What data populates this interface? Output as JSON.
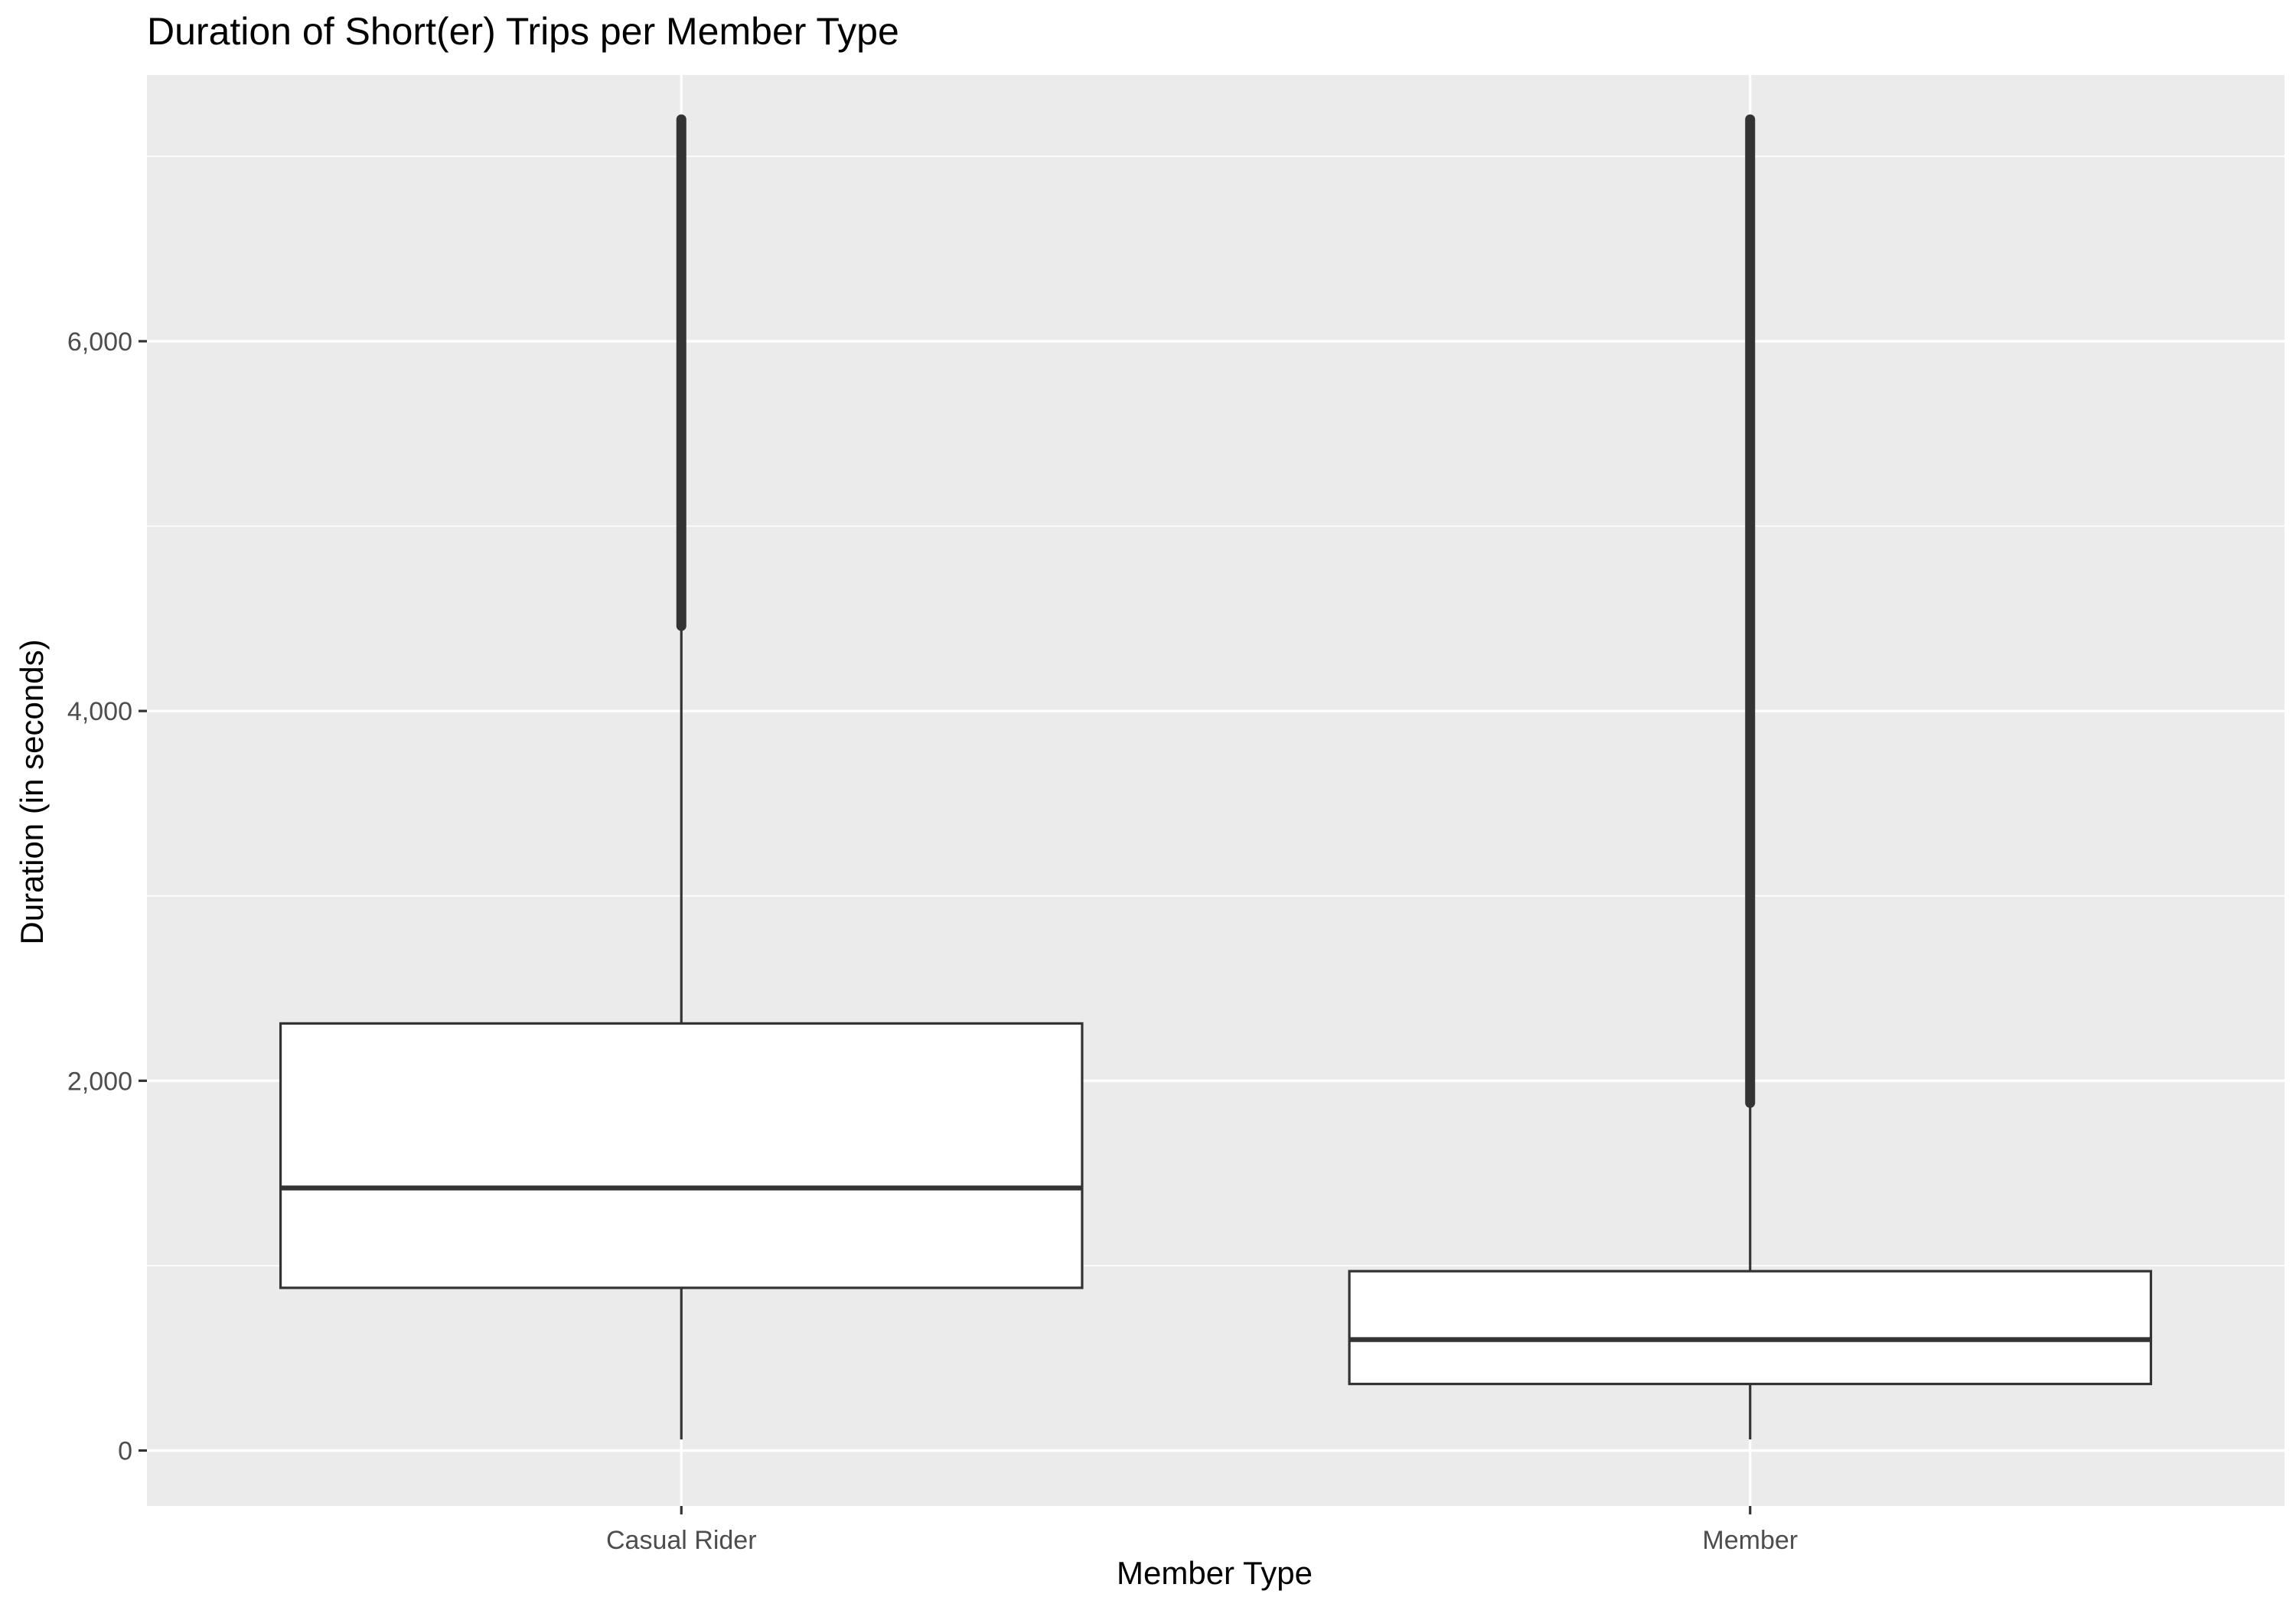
{
  "chart_data": {
    "type": "boxplot",
    "title": "Duration of Short(er) Trips per Member Type",
    "xlabel": "Member Type",
    "ylabel": "Duration (in seconds)",
    "categories": [
      "Casual Rider",
      "Member"
    ],
    "ylim": [
      -300,
      7440
    ],
    "y_ticks": [
      0,
      2000,
      4000,
      6000
    ],
    "y_tick_labels": [
      "0",
      "2,000",
      "4,000",
      "6,000"
    ],
    "grid": true,
    "legend": "none",
    "boxes": [
      {
        "category": "Casual Rider",
        "min": 60,
        "q1": 880,
        "median": 1420,
        "q3": 2310,
        "whisker_high": 4460,
        "outlier_range": [
          4460,
          7200
        ]
      },
      {
        "category": "Member",
        "min": 60,
        "q1": 360,
        "median": 600,
        "q3": 970,
        "whisker_high": 1880,
        "outlier_range": [
          1880,
          7200
        ]
      }
    ],
    "colors": {
      "panel": "#ebebeb",
      "grid": "#ffffff",
      "box_fill": "#ffffff",
      "box_line": "#333333",
      "outliers": "#333333",
      "ticks": "#333333",
      "tick_labels": "#4d4d4d"
    }
  }
}
